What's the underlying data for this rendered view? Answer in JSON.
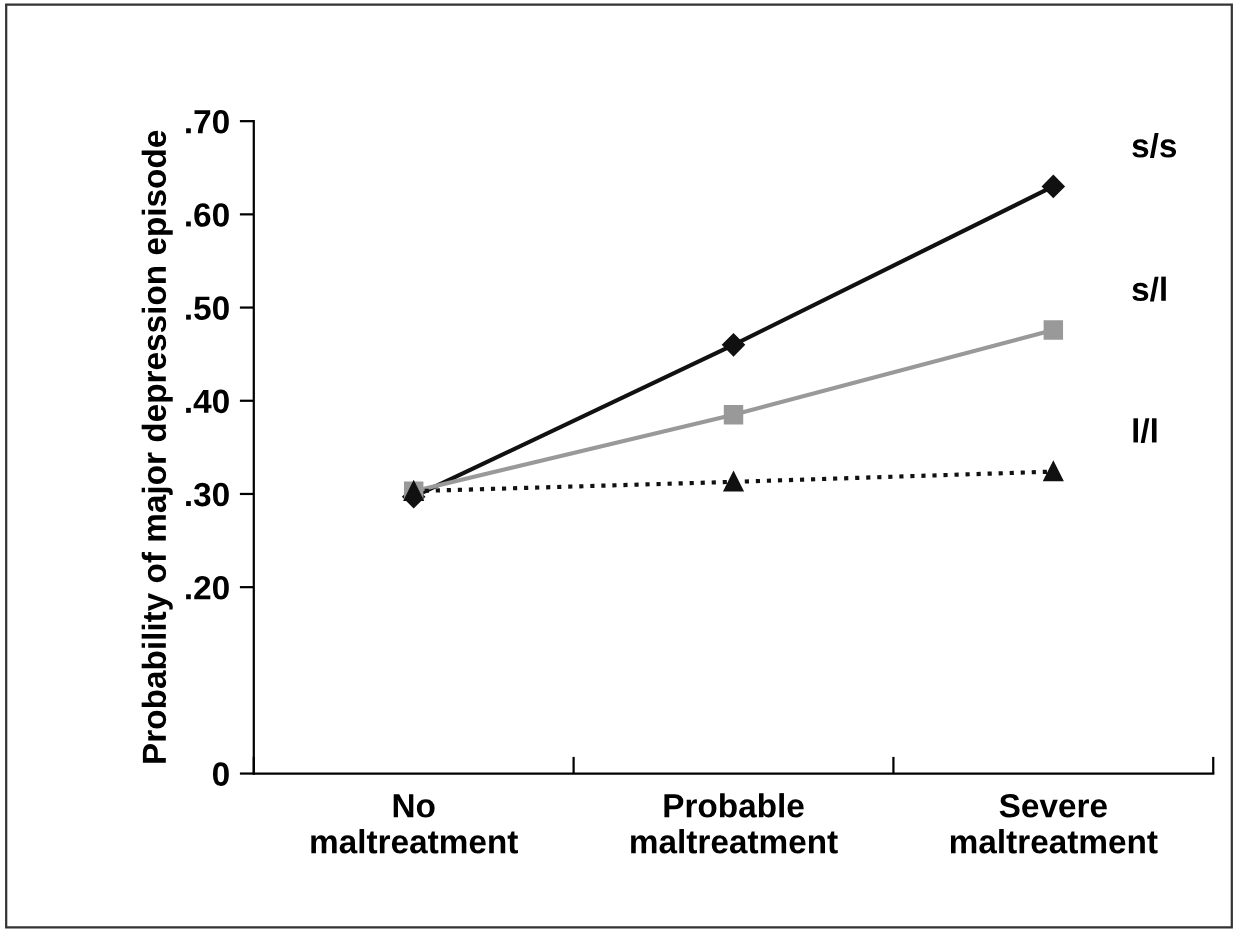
{
  "chart_data": {
    "type": "line",
    "ylabel": "Probability of major depression episode",
    "categories": [
      "No\nmaltreatment",
      "Probable\nmaltreatment",
      "Severe\nmaltreatment"
    ],
    "series": [
      {
        "name": "s/s",
        "color": "#111111",
        "values": [
          0.297,
          0.46,
          0.63
        ],
        "marker": "diamond",
        "line_style": "solid"
      },
      {
        "name": "s/l",
        "color": "#999999",
        "values": [
          0.303,
          0.385,
          0.476
        ],
        "marker": "square",
        "line_style": "solid"
      },
      {
        "name": "l/l",
        "color": "#111111",
        "values": [
          0.303,
          0.313,
          0.324
        ],
        "marker": "triangle",
        "line_style": "dotted"
      }
    ],
    "ylim": [
      0,
      0.7
    ],
    "yticks": [
      0,
      {
        "value": 0.2,
        "label": ".20"
      },
      {
        "value": 0.3,
        "label": ".30"
      },
      {
        "value": 0.4,
        "label": ".40"
      },
      {
        "value": 0.5,
        "label": ".50"
      },
      {
        "value": 0.6,
        "label": ".60"
      },
      {
        "value": 0.7,
        "label": ".70"
      }
    ],
    "grid": false,
    "legend": false
  }
}
